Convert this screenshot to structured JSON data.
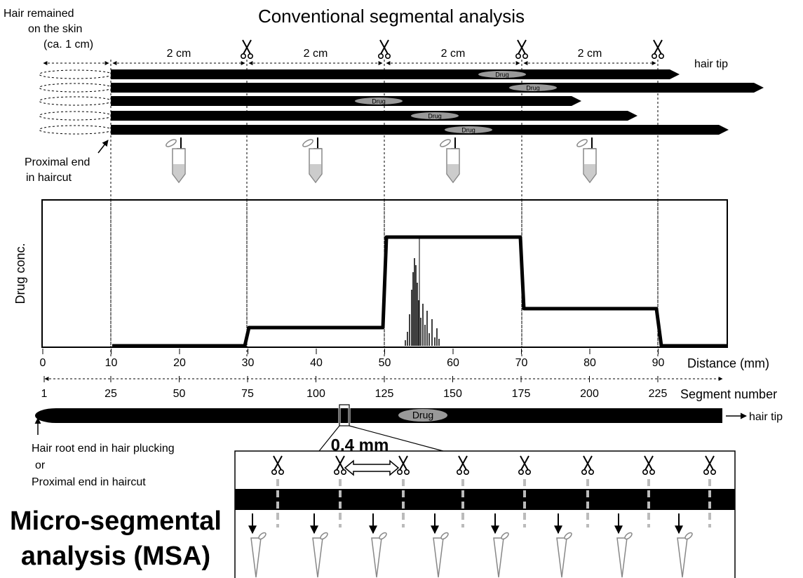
{
  "title": "Conventional segmental analysis",
  "skin_hair_label": [
    "Hair remained",
    "on the skin",
    "(ca. 1 cm)"
  ],
  "segment_length_labels": [
    "2 cm",
    "2 cm",
    "2 cm",
    "2 cm"
  ],
  "hair_tip_label": "hair tip",
  "hair_drug_labels": [
    "Drug",
    "Drug",
    "Drug",
    "Drug",
    "Drug"
  ],
  "proximal_label": [
    "Proximal end",
    "in haircut"
  ],
  "y_axis_label": "Drug conc.",
  "distance_ticks": [
    0,
    10,
    20,
    30,
    40,
    50,
    60,
    70,
    80,
    90
  ],
  "distance_label": "Distance (mm)",
  "segment_ticks": [
    1,
    25,
    50,
    75,
    100,
    125,
    150,
    175,
    200,
    225
  ],
  "segment_label": "Segment number",
  "bottom_hair_drug_label": "Drug",
  "bottom_hair_tip_label": "hair tip",
  "root_label": [
    "Hair root end in hair plucking",
    "or",
    "Proximal end in haircut"
  ],
  "micro_segment_width": "0.4 mm",
  "msa_title": [
    "Micro-segmental",
    "analysis (MSA)"
  ]
}
